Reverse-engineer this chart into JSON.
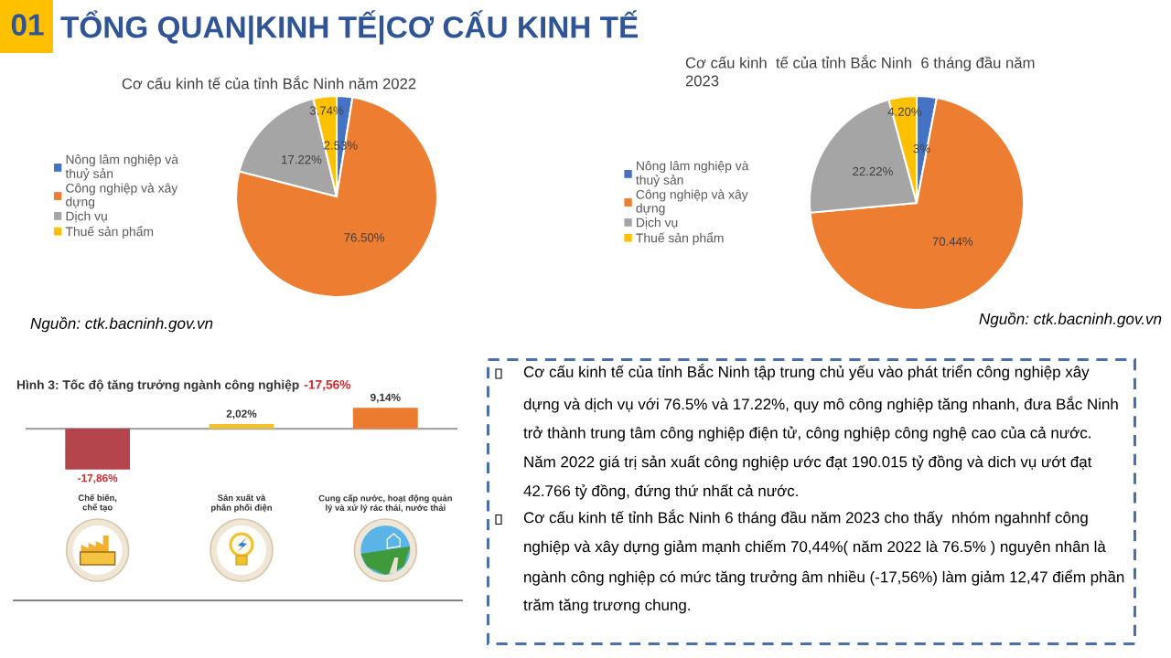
{
  "chart_data": [
    {
      "type": "other",
      "title": "TỔNG QUAN|KINH TẾ|CƠ CẤU KINH TẾ",
      "annotations": [
        "01"
      ]
    },
    {
      "type": "pie",
      "title": "Cơ cấu kinh tế của tỉnh Bắc Ninh năm 2022",
      "categories": [
        "Nông lâm nghiệp và thuỷ sản",
        "Công nghiệp và xây dựng",
        "Dịch vụ",
        "Thuế sản phẩm"
      ],
      "values": [
        2.53,
        76.5,
        17.22,
        3.74
      ],
      "colors": [
        "#4472c4",
        "#ed7d31",
        "#a5a5a5",
        "#ffc000"
      ],
      "value_labels": [
        "2.53%",
        "76.50%",
        "17.22%",
        "3.74%"
      ],
      "legend": "left",
      "annotations": [
        "Nguồn: ctk.bacninh.gov.vn"
      ]
    },
    {
      "type": "pie",
      "title": "Cơ cấu kinh  tế của tỉnh Bắc Ninh  6 tháng đầu năm 2023",
      "categories": [
        "Nông lâm nghiệp và thuỷ sản",
        "Công nghiệp và xây dựng",
        "Dịch vụ",
        "Thuế sản phẩm"
      ],
      "values": [
        3,
        70.44,
        22.22,
        4.2
      ],
      "colors": [
        "#4472c4",
        "#ed7d31",
        "#a5a5a5",
        "#ffc000"
      ],
      "value_labels": [
        "3%",
        "70.44%",
        "22.22%",
        "4.20%"
      ],
      "legend": "left",
      "annotations": [
        "Nguồn: ctk.bacninh.gov.vn"
      ]
    },
    {
      "type": "bar",
      "title": "Hình 3: Tốc độ tăng trưởng ngành công nghiệp",
      "subtitle": "-17,56%",
      "categories": [
        "Chế biến,\nchế tạo",
        "Sản xuất và\nphân phối điện",
        "Cung cấp nước, hoạt động quản\nlý và xử lý rác thải, nước thải"
      ],
      "values": [
        -17.86,
        2.02,
        9.14
      ],
      "colors": [
        "#b5454d",
        "#f2c12e",
        "#ec7a2f"
      ],
      "value_labels": [
        "-17,86%",
        "2,02%",
        "9,14%"
      ]
    },
    {
      "type": "other",
      "annotations": [
        "Cơ cấu kinh tế của tỉnh Bắc Ninh tập trung chủ yếu vào phát triển công nghiệp xây dựng và dịch vụ với 76.5% và 17.22%, quy mô công nghiệp tăng nhanh, đưa Bắc Ninh trở thành trung tâm công nghiệp điện tử, công nghiệp công nghệ cao của cả nước. Năm 2022 giá trị sản xuất công nghiệp ước đạt 190.015 tỷ đồng và dich vụ ướt đạt 42.766 tỷ đồng, đứng thứ nhất cả nước.",
        "Cơ cấu kinh tế tỉnh Bắc Ninh 6 tháng đầu năm 2023 cho thấy  nhóm ngahnhf công nghiệp và xây dựng giảm mạnh chiếm 70,44%( năm 2022 là 76.5% ) nguyên nhân là ngành công nghiệp có mức tăng trưởng âm nhiều (-17,56%) làm giảm 12,47 điểm phần trăm tăng trương chung."
      ]
    }
  ]
}
